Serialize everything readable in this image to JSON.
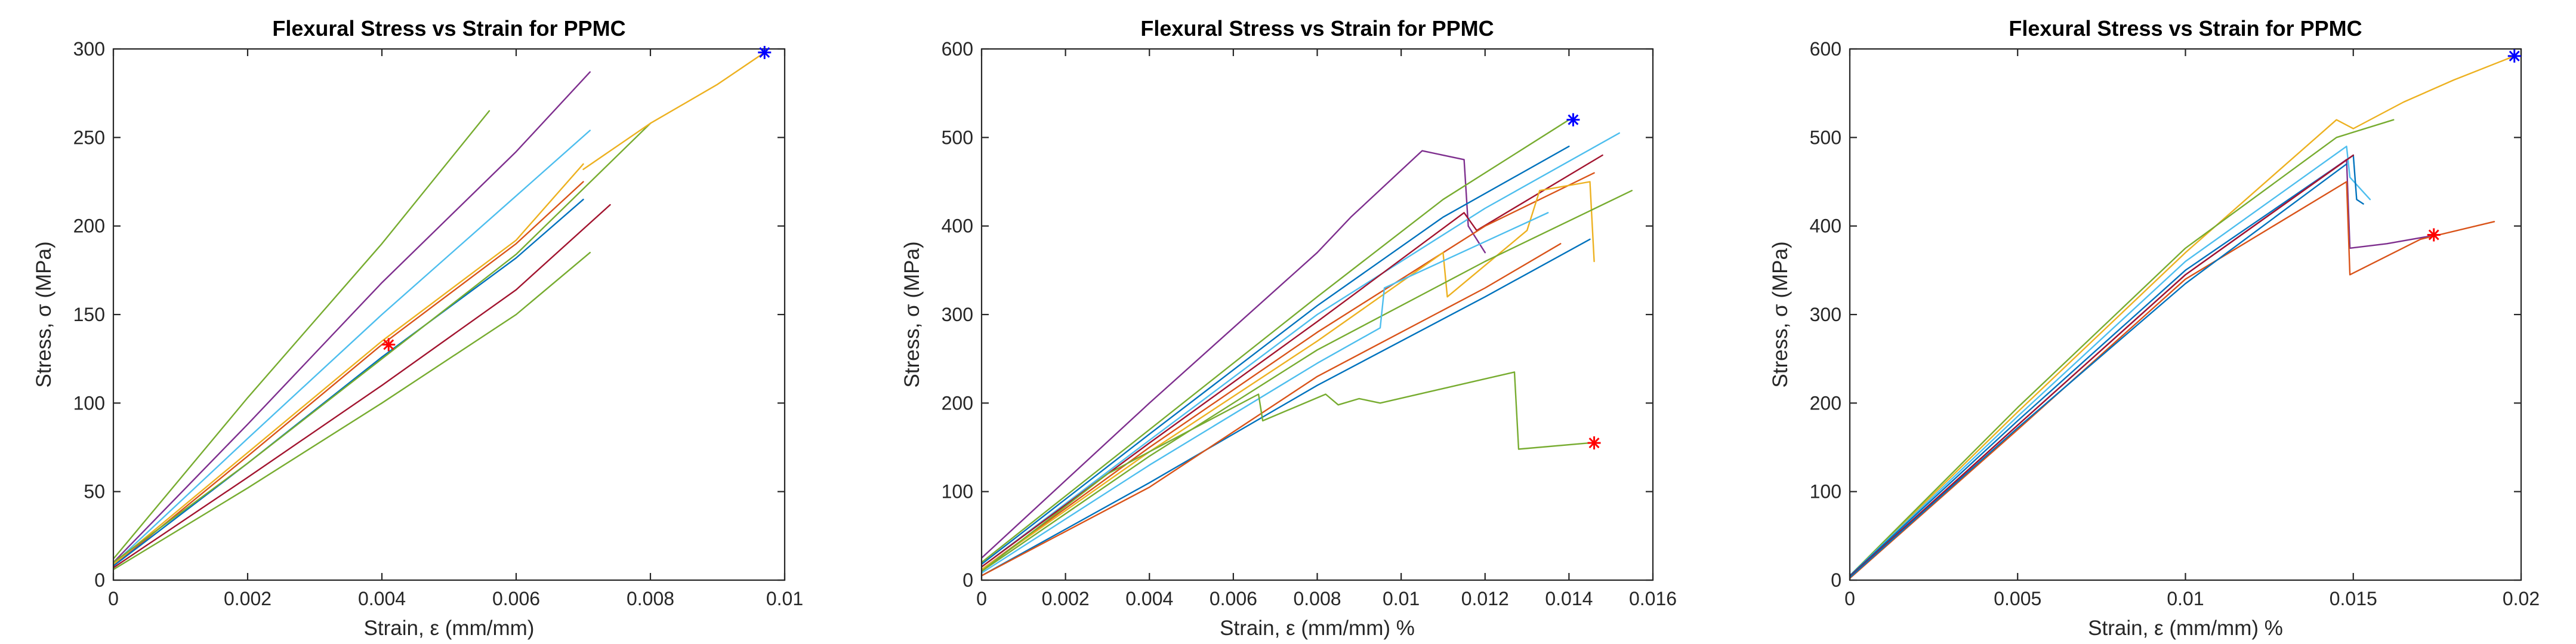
{
  "colors": {
    "axis": "#262626",
    "star_max": "#0000ff",
    "star_min": "#ff0000",
    "palette": [
      "#0072bd",
      "#d95319",
      "#edb120",
      "#7e2f8e",
      "#77ac30",
      "#4dbeee",
      "#a2142f"
    ]
  },
  "chart_data": [
    {
      "type": "line",
      "title": "Flexural Stress vs Strain for PPMC",
      "xlabel": "Strain, ε (mm/mm)",
      "ylabel": "Stress, σ (MPa)",
      "xlim": [
        0,
        0.01
      ],
      "ylim": [
        0,
        300
      ],
      "xticks": [
        0,
        0.002,
        0.004,
        0.006,
        0.008,
        0.01
      ],
      "xtick_labels": [
        "0",
        "0.002",
        "0.004",
        "0.006",
        "0.008",
        "0.01"
      ],
      "yticks": [
        0,
        50,
        100,
        150,
        200,
        250,
        300
      ],
      "ytick_labels": [
        "0",
        "50",
        "100",
        "150",
        "200",
        "250",
        "300"
      ],
      "grid": false,
      "series": [
        {
          "color": "#77ac30",
          "x": [
            0,
            0.002,
            0.004,
            0.0056
          ],
          "y": [
            12,
            103,
            190,
            265
          ]
        },
        {
          "color": "#7e2f8e",
          "x": [
            0,
            0.002,
            0.004,
            0.006,
            0.0071
          ],
          "y": [
            10,
            88,
            168,
            242,
            287
          ]
        },
        {
          "color": "#4dbeee",
          "x": [
            0,
            0.002,
            0.004,
            0.006,
            0.0071
          ],
          "y": [
            9,
            80,
            150,
            217,
            254
          ]
        },
        {
          "color": "#edb120",
          "x": [
            0,
            0.002,
            0.004,
            0.006,
            0.007
          ],
          "y": [
            9,
            72,
            135,
            192,
            235
          ]
        },
        {
          "color": "#d95319",
          "x": [
            0,
            0.002,
            0.004,
            0.006,
            0.007
          ],
          "y": [
            8,
            70,
            133,
            190,
            225
          ]
        },
        {
          "color": "#0072bd",
          "x": [
            0,
            0.002,
            0.004,
            0.006,
            0.007
          ],
          "y": [
            8,
            66,
            126,
            182,
            215
          ]
        },
        {
          "color": "#a2142f",
          "x": [
            0,
            0.002,
            0.004,
            0.006,
            0.0074
          ],
          "y": [
            7,
            58,
            110,
            164,
            212
          ]
        },
        {
          "color": "#77ac30",
          "x": [
            0,
            0.002,
            0.004,
            0.006,
            0.008
          ],
          "y": [
            10,
            66,
            125,
            184,
            258
          ]
        },
        {
          "color": "#edb120",
          "x": [
            0.007,
            0.008,
            0.009,
            0.0097
          ],
          "y": [
            232,
            258,
            280,
            298
          ]
        },
        {
          "color": "#77ac30",
          "x": [
            0,
            0.002,
            0.004,
            0.006,
            0.0071
          ],
          "y": [
            6,
            52,
            100,
            150,
            185
          ]
        }
      ],
      "markers": [
        {
          "type": "max",
          "x": 0.0097,
          "y": 298,
          "color": "#0000ff"
        },
        {
          "type": "min",
          "x": 0.0041,
          "y": 133,
          "color": "#ff0000"
        }
      ]
    },
    {
      "type": "line",
      "title": "Flexural Stress vs Strain for PPMC",
      "xlabel": "Strain, ε (mm/mm) %",
      "ylabel": "Stress, σ (MPa)",
      "xlim": [
        0,
        0.016
      ],
      "ylim": [
        0,
        600
      ],
      "xticks": [
        0,
        0.002,
        0.004,
        0.006,
        0.008,
        0.01,
        0.012,
        0.014,
        0.016
      ],
      "xtick_labels": [
        "0",
        "0.002",
        "0.004",
        "0.006",
        "0.008",
        "0.01",
        "0.012",
        "0.014",
        "0.016"
      ],
      "yticks": [
        0,
        100,
        200,
        300,
        400,
        500,
        600
      ],
      "ytick_labels": [
        "0",
        "100",
        "200",
        "300",
        "400",
        "500",
        "600"
      ],
      "grid": false,
      "series": [
        {
          "color": "#7e2f8e",
          "x": [
            0,
            0.004,
            0.008,
            0.0088,
            0.0105,
            0.0115,
            0.0116,
            0.012
          ],
          "y": [
            25,
            200,
            370,
            410,
            485,
            475,
            400,
            370
          ]
        },
        {
          "color": "#77ac30",
          "x": [
            0,
            0.004,
            0.008,
            0.011,
            0.014
          ],
          "y": [
            20,
            170,
            320,
            430,
            520
          ]
        },
        {
          "color": "#0072bd",
          "x": [
            0,
            0.004,
            0.008,
            0.011,
            0.014
          ],
          "y": [
            18,
            165,
            310,
            410,
            490
          ]
        },
        {
          "color": "#4dbeee",
          "x": [
            0,
            0.004,
            0.008,
            0.012,
            0.0152
          ],
          "y": [
            15,
            158,
            300,
            420,
            505
          ]
        },
        {
          "color": "#a2142f",
          "x": [
            0,
            0.004,
            0.008,
            0.0115,
            0.0118,
            0.0148
          ],
          "y": [
            15,
            155,
            292,
            415,
            395,
            480
          ]
        },
        {
          "color": "#d95319",
          "x": [
            0,
            0.004,
            0.008,
            0.012,
            0.0146
          ],
          "y": [
            12,
            150,
            280,
            400,
            460
          ]
        },
        {
          "color": "#edb120",
          "x": [
            0,
            0.004,
            0.008,
            0.011,
            0.0111,
            0.013,
            0.0133,
            0.0145,
            0.0146
          ],
          "y": [
            12,
            145,
            270,
            370,
            320,
            395,
            440,
            450,
            360
          ]
        },
        {
          "color": "#77ac30",
          "x": [
            0,
            0.004,
            0.008,
            0.012,
            0.0155
          ],
          "y": [
            10,
            140,
            260,
            360,
            440
          ]
        },
        {
          "color": "#4dbeee",
          "x": [
            0,
            0.004,
            0.008,
            0.0095,
            0.0096,
            0.0135
          ],
          "y": [
            8,
            130,
            245,
            285,
            330,
            415
          ]
        },
        {
          "color": "#0072bd",
          "x": [
            0,
            0.004,
            0.008,
            0.012,
            0.0145
          ],
          "y": [
            5,
            110,
            220,
            320,
            385
          ]
        },
        {
          "color": "#d95319",
          "x": [
            0,
            0.004,
            0.008,
            0.012,
            0.0138
          ],
          "y": [
            5,
            105,
            230,
            330,
            380
          ]
        },
        {
          "color": "#77ac30",
          "x": [
            0,
            0.003,
            0.0066,
            0.0067,
            0.0082,
            0.0085,
            0.009,
            0.0095,
            0.0127,
            0.0128,
            0.0145
          ],
          "y": [
            10,
            120,
            210,
            180,
            210,
            198,
            205,
            200,
            235,
            148,
            155
          ]
        }
      ],
      "markers": [
        {
          "type": "max",
          "x": 0.0141,
          "y": 520,
          "color": "#0000ff"
        },
        {
          "type": "min",
          "x": 0.0146,
          "y": 155,
          "color": "#ff0000"
        }
      ]
    },
    {
      "type": "line",
      "title": "Flexural Stress vs Strain for PPMC",
      "xlabel": "Strain, ε (mm/mm) %",
      "ylabel": "Stress, σ (MPa)",
      "xlim": [
        0,
        0.02
      ],
      "ylim": [
        0,
        600
      ],
      "xticks": [
        0,
        0.005,
        0.01,
        0.015,
        0.02
      ],
      "xtick_labels": [
        "0",
        "0.005",
        "0.01",
        "0.015",
        "0.02"
      ],
      "yticks": [
        0,
        100,
        200,
        300,
        400,
        500,
        600
      ],
      "ytick_labels": [
        "0",
        "100",
        "200",
        "300",
        "400",
        "500",
        "600"
      ],
      "grid": false,
      "series": [
        {
          "color": "#edb120",
          "x": [
            0,
            0.005,
            0.01,
            0.0145,
            0.015,
            0.0165,
            0.018,
            0.0198
          ],
          "y": [
            5,
            190,
            370,
            520,
            510,
            540,
            565,
            592
          ]
        },
        {
          "color": "#77ac30",
          "x": [
            0,
            0.005,
            0.01,
            0.0145,
            0.0162
          ],
          "y": [
            5,
            195,
            375,
            500,
            520
          ]
        },
        {
          "color": "#4dbeee",
          "x": [
            0,
            0.005,
            0.01,
            0.0148,
            0.0149,
            0.0155
          ],
          "y": [
            5,
            185,
            360,
            490,
            455,
            430
          ]
        },
        {
          "color": "#0072bd",
          "x": [
            0,
            0.005,
            0.01,
            0.015,
            0.0151,
            0.0153
          ],
          "y": [
            5,
            180,
            350,
            480,
            430,
            425
          ]
        },
        {
          "color": "#7e2f8e",
          "x": [
            0,
            0.005,
            0.01,
            0.0148,
            0.0149,
            0.016,
            0.0175
          ],
          "y": [
            3,
            175,
            345,
            475,
            375,
            380,
            390
          ]
        },
        {
          "color": "#d95319",
          "x": [
            0,
            0.005,
            0.01,
            0.0148,
            0.0149,
            0.017,
            0.0192
          ],
          "y": [
            2,
            170,
            340,
            450,
            345,
            385,
            405
          ]
        },
        {
          "color": "#a2142f",
          "x": [
            0,
            0.005,
            0.01,
            0.015
          ],
          "y": [
            4,
            175,
            345,
            480
          ]
        },
        {
          "color": "#0072bd",
          "x": [
            0,
            0.005,
            0.01,
            0.0148
          ],
          "y": [
            3,
            172,
            335,
            470
          ]
        }
      ],
      "markers": [
        {
          "type": "max",
          "x": 0.0198,
          "y": 592,
          "color": "#0000ff"
        },
        {
          "type": "min",
          "x": 0.0174,
          "y": 390,
          "color": "#ff0000"
        }
      ]
    }
  ]
}
